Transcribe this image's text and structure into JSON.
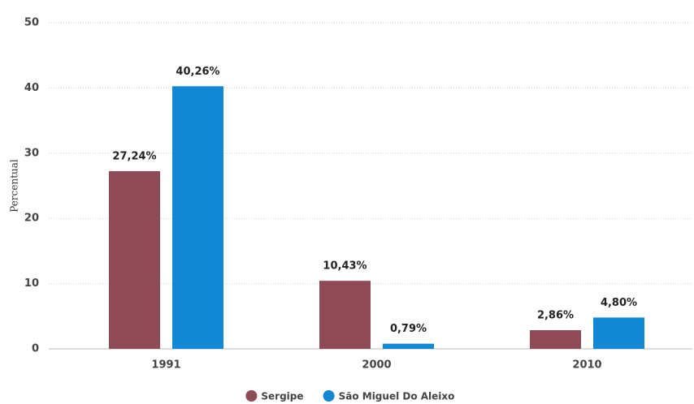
{
  "chart_data": {
    "type": "bar",
    "y_label": "Percentual",
    "categories": [
      "1991",
      "2000",
      "2010"
    ],
    "series": [
      {
        "name": "Sergipe",
        "color": "#8e4b55",
        "values": [
          27.24,
          10.43,
          2.86
        ],
        "value_labels": [
          "27,24%",
          "10,43%",
          "2,86%"
        ]
      },
      {
        "name": "São Miguel Do Aleixo",
        "color": "#1287d3",
        "values": [
          40.26,
          0.79,
          4.8
        ],
        "value_labels": [
          "40,26%",
          "0,79%",
          "4,80%"
        ]
      }
    ],
    "ylim": [
      0,
      50
    ],
    "yticks": [
      0,
      10,
      20,
      30,
      40,
      50
    ],
    "grid": true,
    "legend": "bottom"
  }
}
